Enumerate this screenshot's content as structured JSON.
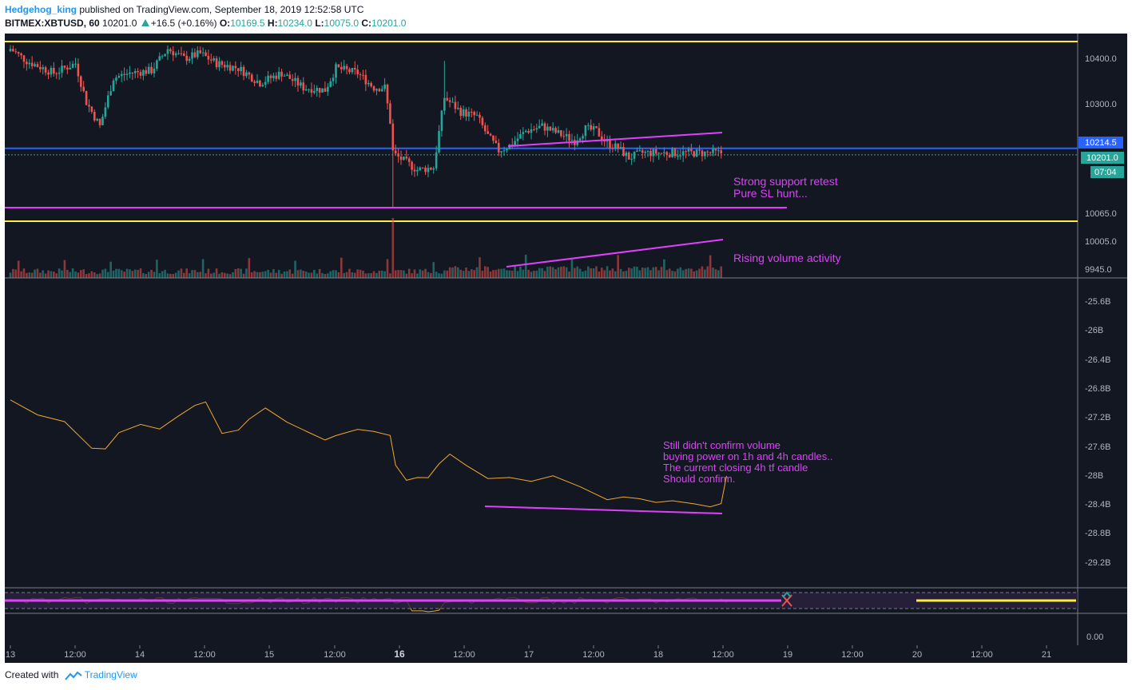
{
  "header": {
    "author": "Hedgehog_king",
    "published_text": "published on TradingView.com, September 18, 2019 12:52:58 UTC",
    "symbol": "BITMEX:XBTUSD, 60",
    "last": "10201.0",
    "change": "+16.5 (+0.16%)",
    "o_label": "O:",
    "o_value": "10169.5",
    "h_label": "H:",
    "h_value": "10234.0",
    "l_label": "L:",
    "l_value": "10075.0",
    "c_label": "C:",
    "c_value": "10201.0"
  },
  "footer": {
    "created_with": "Created with",
    "brand": "TradingView"
  },
  "colors": {
    "background": "#131722",
    "bull": "#26a69a",
    "bear": "#ef5350",
    "magenta": "#e040fb",
    "yellow": "#ffeb3b",
    "blue": "#2962ff",
    "obv": "#f0a830"
  },
  "chart_data": [
    {
      "type": "candlestick",
      "panel": "price",
      "ylim": [
        9935,
        10440
      ],
      "y_ticks": [
        "10400.0",
        "10300.0",
        "10065.0",
        "10005.0",
        "9945.0"
      ],
      "price_labels": {
        "blue_line": "10214.5",
        "last": "10201.0",
        "countdown": "07:04"
      },
      "horizontal_lines": [
        {
          "value": 10435,
          "color": "yellow"
        },
        {
          "value": 10214.5,
          "color": "blue"
        },
        {
          "value": 10092,
          "color": "magenta"
        },
        {
          "value": 10064,
          "color": "yellow"
        }
      ],
      "annotations": [
        "Strong support retest",
        "Pure SL hunt...",
        "Rising volume activity"
      ]
    },
    {
      "type": "line",
      "panel": "obv",
      "y_ticks": [
        "-25.6B",
        "-26B",
        "-26.4B",
        "-26.8B",
        "-27.2B",
        "-27.6B",
        "-28B",
        "-28.4B",
        "-28.8B",
        "-29.2B"
      ],
      "annotation_lines": [
        "Still didn't confirm volume",
        "buying power on 1h and 4h candles..",
        "The current closing 4h tf candle",
        "Should confirm."
      ]
    },
    {
      "type": "line",
      "panel": "oscillator",
      "y_ticks": [
        "0.00"
      ]
    }
  ],
  "x_axis": {
    "labels": [
      {
        "text": "13",
        "bold": false
      },
      {
        "text": "12:00",
        "bold": false
      },
      {
        "text": "14",
        "bold": false
      },
      {
        "text": "12:00",
        "bold": false
      },
      {
        "text": "15",
        "bold": false
      },
      {
        "text": "12:00",
        "bold": false
      },
      {
        "text": "16",
        "bold": true
      },
      {
        "text": "12:00",
        "bold": false
      },
      {
        "text": "17",
        "bold": false
      },
      {
        "text": "12:00",
        "bold": false
      },
      {
        "text": "18",
        "bold": false
      },
      {
        "text": "12:00",
        "bold": false
      },
      {
        "text": "19",
        "bold": false
      },
      {
        "text": "12:00",
        "bold": false
      },
      {
        "text": "20",
        "bold": false
      },
      {
        "text": "12:00",
        "bold": false
      },
      {
        "text": "21",
        "bold": false
      }
    ]
  }
}
